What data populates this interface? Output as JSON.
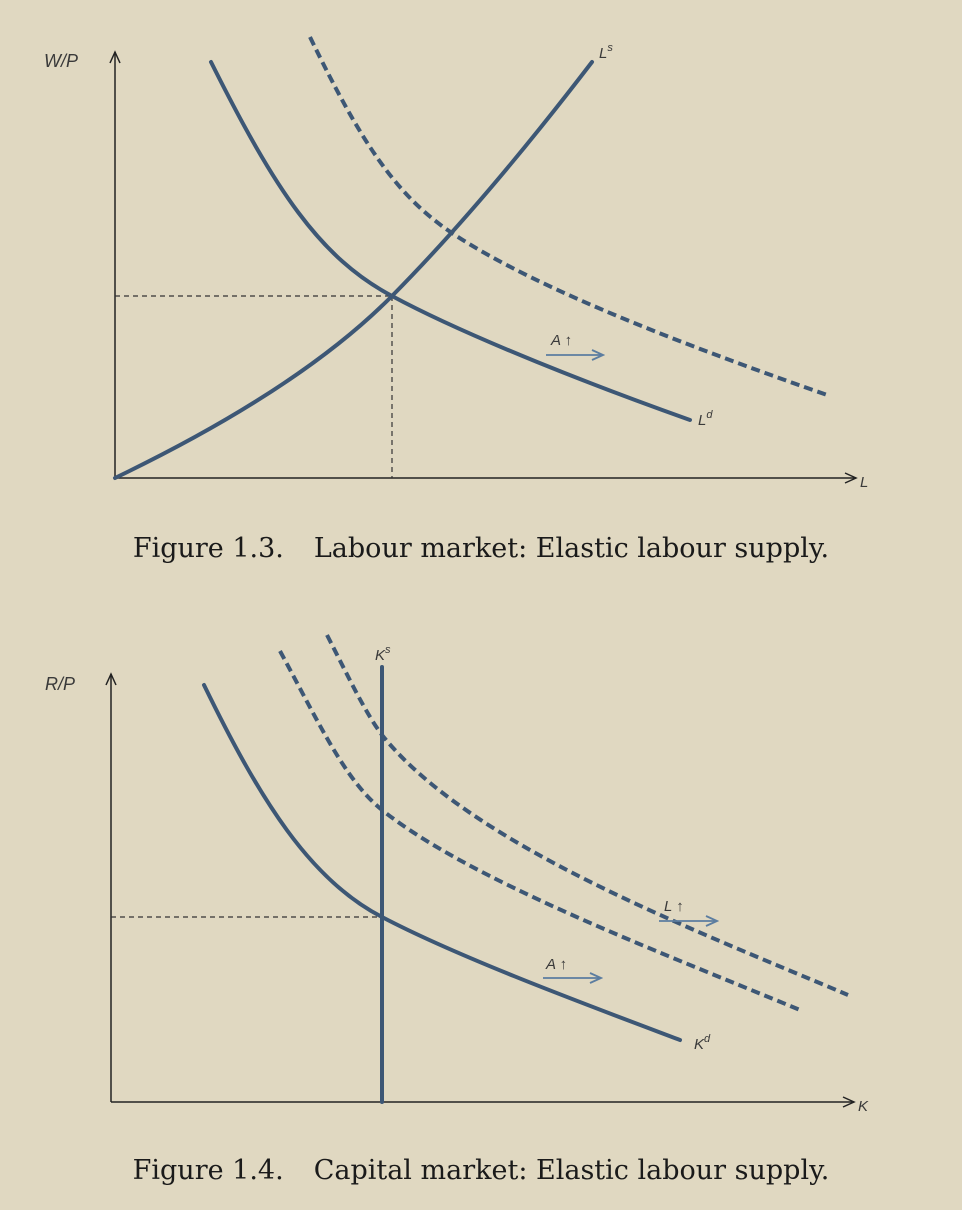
{
  "figures": [
    {
      "number": "Figure 1.3.",
      "caption": "Labour market: Elastic labour supply.",
      "y_axis_label": "W/P",
      "x_axis_label": "L",
      "supply_label": {
        "base": "L",
        "sup": "s"
      },
      "demand_label": {
        "base": "L",
        "sup": "d"
      },
      "shift_label": "A ↑"
    },
    {
      "number": "Figure 1.4.",
      "caption": "Capital market: Elastic labour supply.",
      "y_axis_label": "R/P",
      "x_axis_label": "K",
      "supply_label": {
        "base": "K",
        "sup": "s"
      },
      "demand_label": {
        "base": "K",
        "sup": "d"
      },
      "shift_labels": [
        "A ↑",
        "L ↑"
      ]
    }
  ],
  "colors": {
    "background": "#e0d8c1",
    "curve": "#3d5775",
    "arrow": "#5c7da0"
  }
}
